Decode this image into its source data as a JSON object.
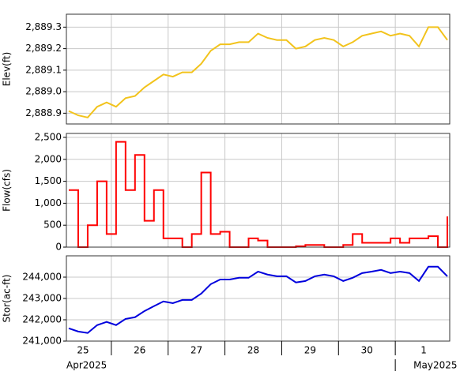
{
  "chart_data": [
    {
      "type": "line",
      "y_label": "Elev(ft)",
      "color": "#f2c31c",
      "grid": true,
      "xlim": [
        "2025-04-25 05:00",
        "2025-05-01 23:00"
      ],
      "xticks": [
        "2025-04-26 00:00",
        "2025-04-27 00:00",
        "2025-04-28 00:00",
        "2025-04-29 00:00",
        "2025-04-30 00:00",
        "2025-05-01 00:00"
      ],
      "ylim": [
        2888.85,
        2889.36
      ],
      "yticks": [
        {
          "value": 2888.9,
          "label": "2,888.9"
        },
        {
          "value": 2889.0,
          "label": "2,889.0"
        },
        {
          "value": 2889.1,
          "label": "2,889.1"
        },
        {
          "value": 2889.2,
          "label": "2,889.2"
        },
        {
          "value": 2889.3,
          "label": "2,889.3"
        }
      ],
      "x": [
        "2025-04-25 06:00",
        "2025-04-25 10:00",
        "2025-04-25 14:00",
        "2025-04-25 18:00",
        "2025-04-25 22:00",
        "2025-04-26 02:00",
        "2025-04-26 06:00",
        "2025-04-26 10:00",
        "2025-04-26 14:00",
        "2025-04-26 18:00",
        "2025-04-26 22:00",
        "2025-04-27 02:00",
        "2025-04-27 06:00",
        "2025-04-27 10:00",
        "2025-04-27 14:00",
        "2025-04-27 18:00",
        "2025-04-27 22:00",
        "2025-04-28 02:00",
        "2025-04-28 06:00",
        "2025-04-28 10:00",
        "2025-04-28 14:00",
        "2025-04-28 18:00",
        "2025-04-28 22:00",
        "2025-04-29 02:00",
        "2025-04-29 06:00",
        "2025-04-29 10:00",
        "2025-04-29 14:00",
        "2025-04-29 18:00",
        "2025-04-29 22:00",
        "2025-04-30 02:00",
        "2025-04-30 06:00",
        "2025-04-30 10:00",
        "2025-04-30 14:00",
        "2025-04-30 18:00",
        "2025-04-30 22:00",
        "2025-05-01 02:00",
        "2025-05-01 06:00",
        "2025-05-01 10:00",
        "2025-05-01 14:00",
        "2025-05-01 18:00",
        "2025-05-01 22:00"
      ],
      "values": [
        2888.91,
        2888.89,
        2888.88,
        2888.93,
        2888.95,
        2888.93,
        2888.97,
        2888.98,
        2889.02,
        2889.05,
        2889.08,
        2889.07,
        2889.09,
        2889.09,
        2889.13,
        2889.19,
        2889.22,
        2889.22,
        2889.23,
        2889.23,
        2889.27,
        2889.25,
        2889.24,
        2889.24,
        2889.2,
        2889.21,
        2889.24,
        2889.25,
        2889.24,
        2889.21,
        2889.23,
        2889.26,
        2889.27,
        2889.28,
        2889.26,
        2889.27,
        2889.26,
        2889.21,
        2889.3,
        2889.3,
        2889.24
      ]
    },
    {
      "type": "line",
      "drawstyle": "steps",
      "y_label": "Flow(cfs)",
      "color": "#ff0000",
      "grid": true,
      "xlim": [
        "2025-04-25 05:00",
        "2025-05-01 23:00"
      ],
      "xticks": [
        "2025-04-26 00:00",
        "2025-04-27 00:00",
        "2025-04-28 00:00",
        "2025-04-29 00:00",
        "2025-04-30 00:00",
        "2025-05-01 00:00"
      ],
      "ylim": [
        0,
        2590
      ],
      "yticks": [
        0,
        500,
        {
          "value": 1000,
          "label": "1,000"
        },
        {
          "value": 1500,
          "label": "1,500"
        },
        {
          "value": 2000,
          "label": "2,000"
        },
        {
          "value": 2500,
          "label": "2,500"
        }
      ],
      "x": [
        "2025-04-25 06:00",
        "2025-04-25 10:00",
        "2025-04-25 14:00",
        "2025-04-25 18:00",
        "2025-04-25 22:00",
        "2025-04-26 02:00",
        "2025-04-26 06:00",
        "2025-04-26 10:00",
        "2025-04-26 14:00",
        "2025-04-26 18:00",
        "2025-04-26 22:00",
        "2025-04-27 02:00",
        "2025-04-27 06:00",
        "2025-04-27 10:00",
        "2025-04-27 14:00",
        "2025-04-27 18:00",
        "2025-04-27 22:00",
        "2025-04-28 02:00",
        "2025-04-28 06:00",
        "2025-04-28 10:00",
        "2025-04-28 14:00",
        "2025-04-28 18:00",
        "2025-04-28 22:00",
        "2025-04-29 02:00",
        "2025-04-29 06:00",
        "2025-04-29 10:00",
        "2025-04-29 14:00",
        "2025-04-29 18:00",
        "2025-04-29 22:00",
        "2025-04-30 02:00",
        "2025-04-30 06:00",
        "2025-04-30 10:00",
        "2025-04-30 14:00",
        "2025-04-30 18:00",
        "2025-04-30 22:00",
        "2025-05-01 02:00",
        "2025-05-01 06:00",
        "2025-05-01 10:00",
        "2025-05-01 14:00",
        "2025-05-01 18:00",
        "2025-05-01 22:00"
      ],
      "values": [
        1300,
        0,
        500,
        1500,
        300,
        2400,
        1300,
        2100,
        600,
        1300,
        200,
        200,
        0,
        300,
        1700,
        300,
        350,
        0,
        0,
        200,
        150,
        0,
        0,
        0,
        20,
        50,
        50,
        0,
        0,
        50,
        300,
        100,
        100,
        100,
        200,
        100,
        200,
        200,
        250,
        0,
        700
      ]
    },
    {
      "type": "line",
      "y_label": "Stor(ac-ft)",
      "color": "#0000dd",
      "grid": true,
      "xlim": [
        "2025-04-25 05:00",
        "2025-05-01 23:00"
      ],
      "xticks": [
        "2025-04-26 00:00",
        "2025-04-27 00:00",
        "2025-04-28 00:00",
        "2025-04-29 00:00",
        "2025-04-30 00:00",
        "2025-05-01 00:00"
      ],
      "ylim": [
        241000,
        245000
      ],
      "yticks": [
        {
          "value": 241000,
          "label": "241,000"
        },
        {
          "value": 242000,
          "label": "242,000"
        },
        {
          "value": 243000,
          "label": "243,000"
        },
        {
          "value": 244000,
          "label": "244,000"
        }
      ],
      "x": [
        "2025-04-25 06:00",
        "2025-04-25 10:00",
        "2025-04-25 14:00",
        "2025-04-25 18:00",
        "2025-04-25 22:00",
        "2025-04-26 02:00",
        "2025-04-26 06:00",
        "2025-04-26 10:00",
        "2025-04-26 14:00",
        "2025-04-26 18:00",
        "2025-04-26 22:00",
        "2025-04-27 02:00",
        "2025-04-27 06:00",
        "2025-04-27 10:00",
        "2025-04-27 14:00",
        "2025-04-27 18:00",
        "2025-04-27 22:00",
        "2025-04-28 02:00",
        "2025-04-28 06:00",
        "2025-04-28 10:00",
        "2025-04-28 14:00",
        "2025-04-28 18:00",
        "2025-04-28 22:00",
        "2025-04-29 02:00",
        "2025-04-29 06:00",
        "2025-04-29 10:00",
        "2025-04-29 14:00",
        "2025-04-29 18:00",
        "2025-04-29 22:00",
        "2025-04-30 02:00",
        "2025-04-30 06:00",
        "2025-04-30 10:00",
        "2025-04-30 14:00",
        "2025-04-30 18:00",
        "2025-04-30 22:00",
        "2025-05-01 02:00",
        "2025-05-01 06:00",
        "2025-05-01 10:00",
        "2025-05-01 14:00",
        "2025-05-01 18:00",
        "2025-05-01 22:00"
      ],
      "values": [
        241600,
        241450,
        241380,
        241750,
        241900,
        241750,
        242040,
        242120,
        242410,
        242640,
        242860,
        242780,
        242930,
        242930,
        243230,
        243670,
        243890,
        243890,
        243970,
        243970,
        244260,
        244120,
        244040,
        244040,
        243750,
        243820,
        244040,
        244120,
        244040,
        243820,
        243970,
        244190,
        244260,
        244340,
        244190,
        244260,
        244190,
        243820,
        244490,
        244490,
        244040
      ],
      "day_labels": [
        {
          "value": "2025-04-25 12:00",
          "label": "25"
        },
        {
          "value": "2025-04-26 12:00",
          "label": "26"
        },
        {
          "value": "2025-04-27 12:00",
          "label": "27"
        },
        {
          "value": "2025-04-28 12:00",
          "label": "28"
        },
        {
          "value": "2025-04-29 12:00",
          "label": "29"
        },
        {
          "value": "2025-04-30 12:00",
          "label": "30"
        },
        {
          "value": "2025-05-01 12:00",
          "label": "1"
        }
      ],
      "month_labels": [
        {
          "value": "2025-04-01 00:00",
          "label": "Apr2025"
        },
        {
          "value": "2025-05-01 00:00",
          "label": "May2025"
        }
      ]
    }
  ]
}
